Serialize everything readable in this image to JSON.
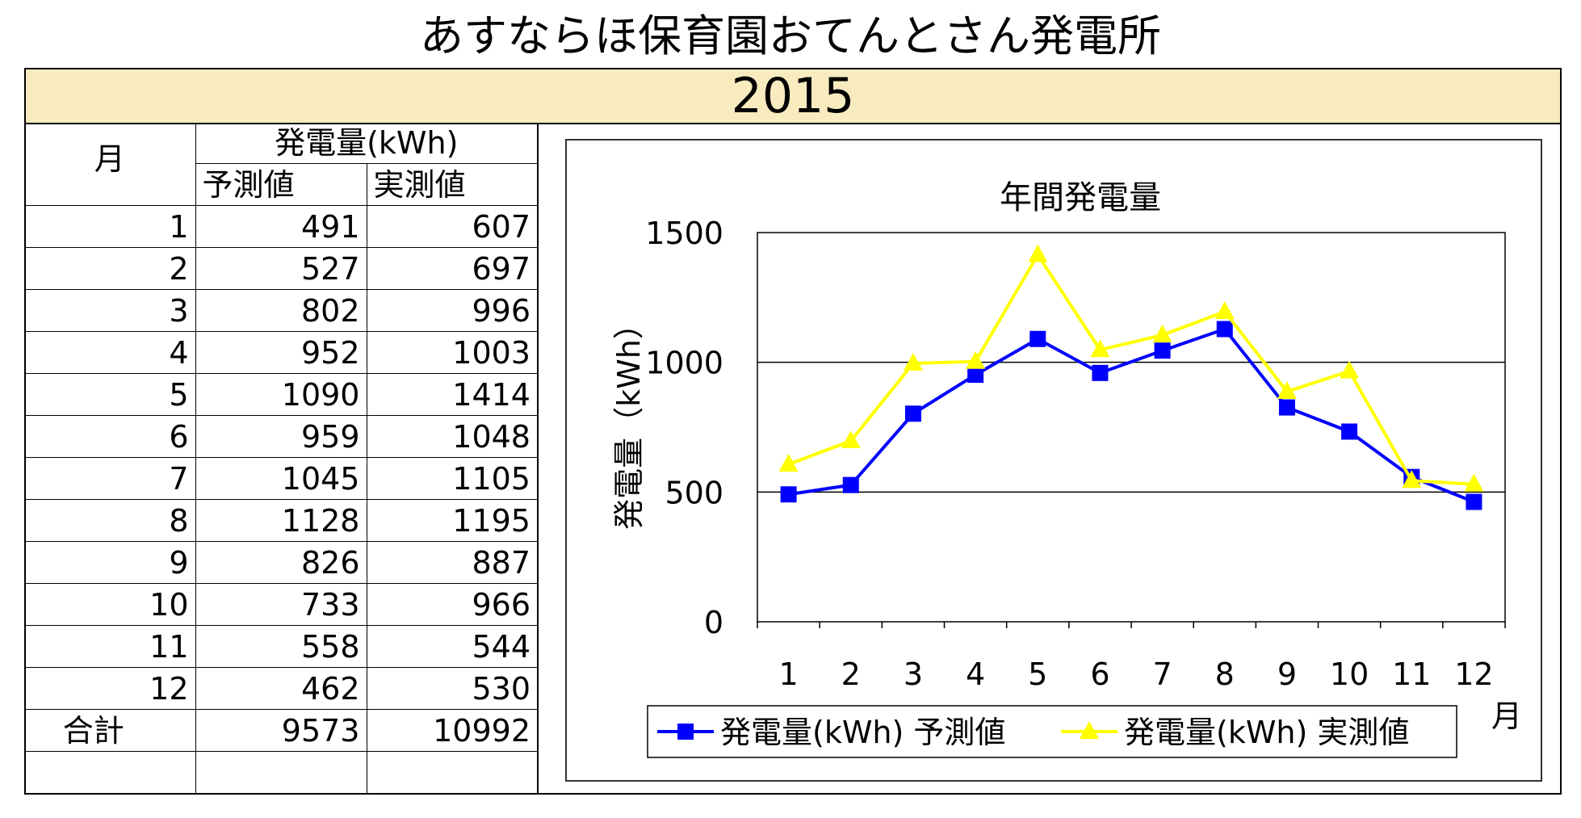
{
  "page_title": "あすならほ保育園おてんとさん発電所",
  "year": "2015",
  "table": {
    "month_header": "月",
    "group_header": "発電量(kWh)",
    "col_forecast": "予測値",
    "col_actual": "実測値",
    "rows": [
      {
        "month": "1",
        "forecast": "491",
        "actual": "607"
      },
      {
        "month": "2",
        "forecast": "527",
        "actual": "697"
      },
      {
        "month": "3",
        "forecast": "802",
        "actual": "996"
      },
      {
        "month": "4",
        "forecast": "952",
        "actual": "1003"
      },
      {
        "month": "5",
        "forecast": "1090",
        "actual": "1414"
      },
      {
        "month": "6",
        "forecast": "959",
        "actual": "1048"
      },
      {
        "month": "7",
        "forecast": "1045",
        "actual": "1105"
      },
      {
        "month": "8",
        "forecast": "1128",
        "actual": "1195"
      },
      {
        "month": "9",
        "forecast": "826",
        "actual": "887"
      },
      {
        "month": "10",
        "forecast": "733",
        "actual": "966"
      },
      {
        "month": "11",
        "forecast": "558",
        "actual": "544"
      },
      {
        "month": "12",
        "forecast": "462",
        "actual": "530"
      }
    ],
    "total_label": "合計",
    "total_forecast": "9573",
    "total_actual": "10992"
  },
  "chart_data": {
    "type": "line",
    "title": "年間発電量",
    "xlabel": "月",
    "ylabel": "発電量（kWh）",
    "categories": [
      "1",
      "2",
      "3",
      "4",
      "5",
      "6",
      "7",
      "8",
      "9",
      "10",
      "11",
      "12"
    ],
    "ylim": [
      0,
      1500
    ],
    "yticks": [
      0,
      500,
      1000,
      1500
    ],
    "grid": true,
    "legend_position": "bottom",
    "series": [
      {
        "name": "発電量(kWh) 予測値",
        "color": "#0000ff",
        "marker": "square",
        "values": [
          491,
          527,
          802,
          952,
          1090,
          959,
          1045,
          1128,
          826,
          733,
          558,
          462
        ]
      },
      {
        "name": "発電量(kWh) 実測値",
        "color": "#ffff00",
        "marker": "triangle",
        "values": [
          607,
          697,
          996,
          1003,
          1414,
          1048,
          1105,
          1195,
          887,
          966,
          544,
          530
        ]
      }
    ]
  }
}
